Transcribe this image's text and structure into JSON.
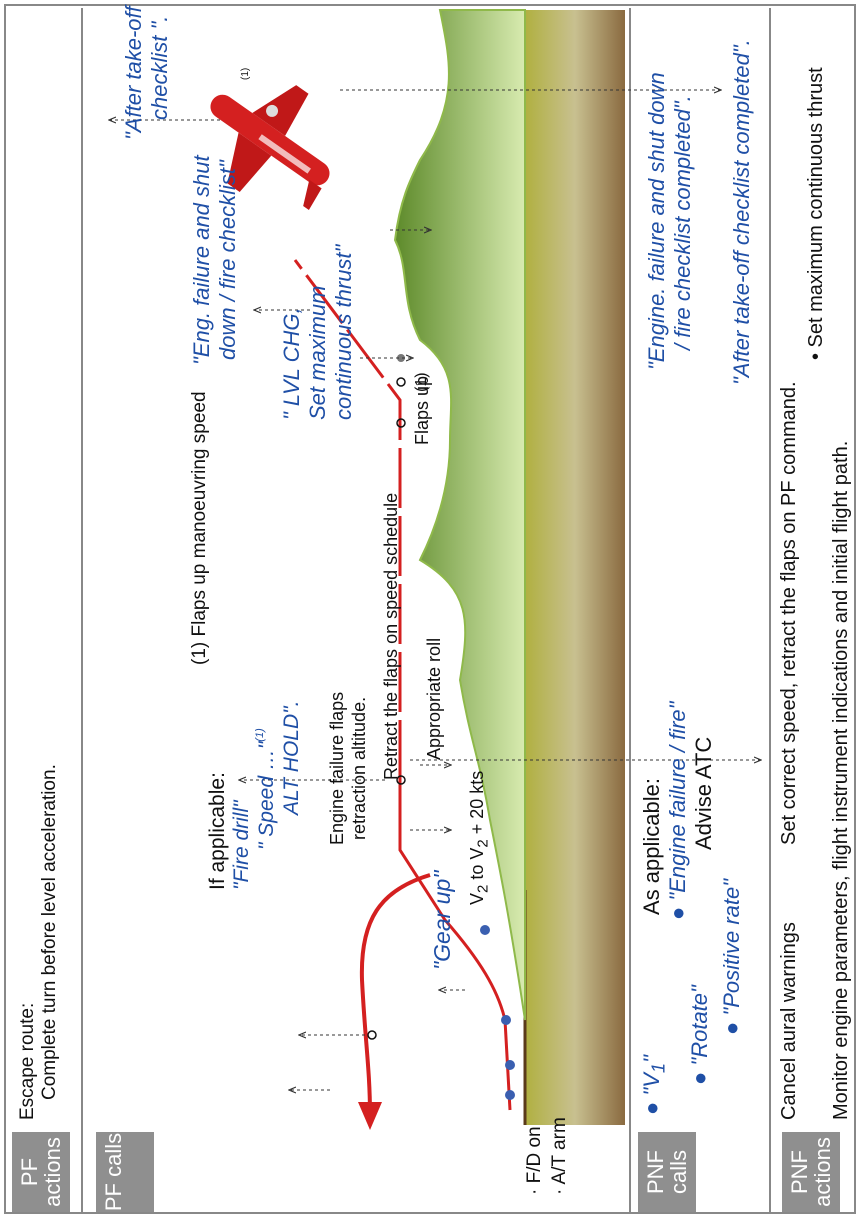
{
  "rows": {
    "pf_actions": "PF actions",
    "pf_calls": "PF calls",
    "pnf_calls": "PNF calls",
    "pnf_actions": "PNF actions"
  },
  "pf_actions": {
    "escape_title": "Escape route:",
    "escape_text": "Complete turn before level acceleration."
  },
  "pf_calls": {
    "note": "(1) Flaps up manoeuvring speed",
    "if_applicable": "If applicable:",
    "fire_drill": "\"Fire drill\"",
    "speed": "\" Speed …\"",
    "speed_note": "(1)",
    "alt_hold": "ALT HOLD\".",
    "gear_up": "\"Gear up\"",
    "lvl_chg_1": "\" LVL CHG,",
    "lvl_chg_2": "Set maximum",
    "lvl_chg_3": "continuous thrust\"",
    "eng_fail_1": "\"Eng. failure and shut",
    "eng_fail_2": "down / fire checklist\"",
    "after_to_1": "\"After take-off",
    "after_to_2": "checklist \".",
    "plane_note": "(1)"
  },
  "profile": {
    "fd_on": "· F/D on",
    "at_arm": "· A/T arm",
    "eng_flaps_1": "Engine failure flaps",
    "eng_flaps_2": "retraction altitude.",
    "v2": "V",
    "v2_sub": "2",
    "v2_to": " to V",
    "v2_sub2": "2",
    "v2_plus": " + 20 kts",
    "retract": "Retract the flaps on speed schedule",
    "roll": "Appropriate roll",
    "flaps_up": "Flaps up",
    "note1": "(1)"
  },
  "pnf_calls": {
    "v1": "\"V",
    "v1_sub": "1",
    "v1_end": "\"",
    "rotate": "\"Rotate\"",
    "positive": "\"Positive rate\"",
    "as_applicable": "As applicable:",
    "engine_fire": "\"Engine failure / fire\"",
    "advise": "Advise ATC",
    "eng_checklist_1": "\"Engine. failure and shut down",
    "eng_checklist_2": "/ fire checklist  completed\".",
    "after_completed": "\"After take-off checklist completed\"."
  },
  "pnf_actions": {
    "cancel": "Cancel aural warnings",
    "set_speed": "Set correct speed, retract the flaps on PF command.",
    "set_mct": "• Set maximum continuous thrust",
    "monitor": "Monitor engine parameters, flight instrument indications and initial flight path."
  },
  "colors": {
    "flight_path": "#d42020",
    "call_blue": "#1f4fa6",
    "terrain": "#8fb94a",
    "label_bg": "#8f8f8f"
  }
}
